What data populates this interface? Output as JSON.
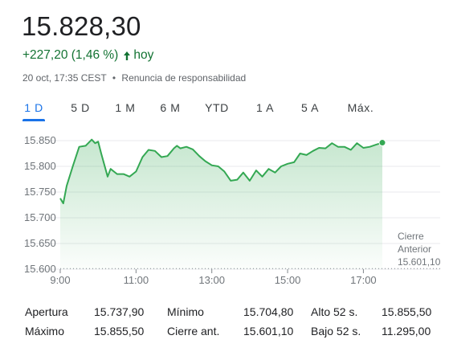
{
  "quote": {
    "price": "15.828,30",
    "change": "+227,20 (1,46 %)",
    "period": "hoy",
    "timestamp": "20 oct, 17:35 CEST",
    "separator": "•",
    "disclaimer": "Renuncia de responsabilidad"
  },
  "colors": {
    "positive": "#137333",
    "line": "#34a853",
    "accent": "#1a73e8"
  },
  "tabs": [
    {
      "label": "1 D",
      "active": true
    },
    {
      "label": "5 D",
      "active": false
    },
    {
      "label": "1 M",
      "active": false
    },
    {
      "label": "6 M",
      "active": false
    },
    {
      "label": "YTD",
      "active": false
    },
    {
      "label": "1 A",
      "active": false
    },
    {
      "label": "5 A",
      "active": false
    },
    {
      "label": "Máx.",
      "active": false
    }
  ],
  "chart_data": {
    "type": "area",
    "yticks": [
      "15.850",
      "15.800",
      "15.750",
      "15.700",
      "15.650",
      "15.600"
    ],
    "xticks": [
      "9:00",
      "11:00",
      "13:00",
      "15:00",
      "17:00"
    ],
    "ylim": [
      15600,
      15850
    ],
    "previous_close_label": [
      "Cierre",
      "Anterior",
      "15.601,10"
    ],
    "previous_close": 15601.1,
    "x": [
      9.0,
      9.08,
      9.17,
      9.33,
      9.5,
      9.67,
      9.83,
      9.92,
      10.0,
      10.08,
      10.25,
      10.33,
      10.5,
      10.67,
      10.83,
      11.0,
      11.17,
      11.33,
      11.5,
      11.67,
      11.83,
      12.0,
      12.08,
      12.17,
      12.33,
      12.5,
      12.67,
      12.83,
      13.0,
      13.17,
      13.33,
      13.5,
      13.67,
      13.83,
      14.0,
      14.17,
      14.33,
      14.5,
      14.67,
      14.83,
      15.0,
      15.17,
      15.33,
      15.5,
      15.67,
      15.83,
      16.0,
      16.17,
      16.33,
      16.5,
      16.67,
      16.83,
      17.0,
      17.17,
      17.33,
      17.5
    ],
    "values": [
      15738,
      15728,
      15762,
      15800,
      15838,
      15840,
      15852,
      15845,
      15848,
      15825,
      15780,
      15795,
      15785,
      15785,
      15780,
      15790,
      15818,
      15832,
      15830,
      15818,
      15820,
      15835,
      15840,
      15835,
      15838,
      15833,
      15820,
      15810,
      15802,
      15800,
      15790,
      15772,
      15774,
      15788,
      15772,
      15792,
      15780,
      15795,
      15788,
      15800,
      15805,
      15808,
      15825,
      15822,
      15830,
      15836,
      15835,
      15845,
      15838,
      15838,
      15832,
      15845,
      15836,
      15838,
      15842,
      15846
    ]
  },
  "stats": {
    "rows": [
      [
        {
          "label": "Apertura",
          "value": "15.737,90"
        },
        {
          "label": "Mínimo",
          "value": "15.704,80"
        },
        {
          "label": "Alto 52 s.",
          "value": "15.855,50"
        }
      ],
      [
        {
          "label": "Máximo",
          "value": "15.855,50"
        },
        {
          "label": "Cierre ant.",
          "value": "15.601,10"
        },
        {
          "label": "Bajo 52 s.",
          "value": "11.295,00"
        }
      ]
    ]
  }
}
